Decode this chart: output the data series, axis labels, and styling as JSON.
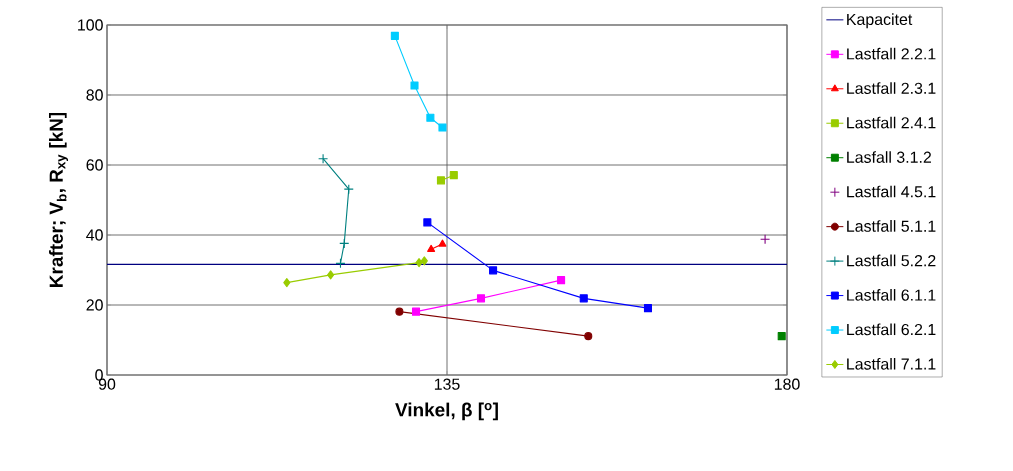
{
  "chart_data": {
    "type": "line",
    "xlabel": "Vinkel, β [$^{o}$]",
    "ylabel": "Krafter; V$_{b}$, R$_{xy}$ [kN]",
    "xlim": [
      90,
      180
    ],
    "xticks": [
      90,
      135,
      180
    ],
    "ylim": [
      0,
      100
    ],
    "yticks": [
      0,
      20,
      40,
      60,
      80,
      100
    ],
    "grid": true,
    "legend": "right",
    "series": [
      {
        "name": "Kapacitet",
        "color": "#000080",
        "marker": "none",
        "line_style": "solid",
        "x": [
          90,
          180
        ],
        "values": [
          31.6,
          31.6
        ]
      },
      {
        "name": "Lastfall 2.2.1",
        "color": "#ff00ff",
        "marker": "square",
        "line_style": "solid",
        "x": [
          130.9,
          139.5,
          150.1
        ],
        "values": [
          18.1,
          21.9,
          27.1
        ]
      },
      {
        "name": "Lastfall 2.3.1",
        "color": "#ff0000",
        "marker": "triangle",
        "line_style": "solid",
        "x": [
          132.9,
          134.4
        ],
        "values": [
          35.9,
          37.4
        ]
      },
      {
        "name": "Lastfall 2.4.1",
        "color": "#99cc00",
        "marker": "square",
        "line_style": "solid",
        "x": [
          134.2,
          135.9
        ],
        "values": [
          55.6,
          57.1
        ]
      },
      {
        "name": "Lasfall 3.1.2",
        "color": "#008000",
        "marker": "square",
        "line_style": "solid",
        "x": [
          179.3
        ],
        "values": [
          11.1
        ]
      },
      {
        "name": "Lastfall 4.5.1",
        "color": "#800080",
        "marker": "cross",
        "type": "scatter",
        "x": [
          177.1
        ],
        "values": [
          38.8
        ]
      },
      {
        "name": "Lastfall 5.1.1",
        "color": "#800000",
        "marker": "circle",
        "line_style": "solid",
        "x": [
          128.7,
          153.7
        ],
        "values": [
          18.1,
          11.1
        ]
      },
      {
        "name": "Lastfall 5.2.2",
        "color": "#008080",
        "marker": "cross",
        "line_style": "solid",
        "x": [
          118.6,
          122.0,
          121.4,
          120.9
        ],
        "values": [
          61.8,
          53.1,
          37.6,
          31.9
        ]
      },
      {
        "name": "Lastfall 6.1.1",
        "color": "#0000ff",
        "marker": "square",
        "line_style": "solid",
        "x": [
          132.4,
          141.1,
          153.1,
          161.6
        ],
        "values": [
          43.6,
          29.9,
          21.9,
          19.1
        ]
      },
      {
        "name": "Lastfall 6.2.1",
        "color": "#00ccff",
        "marker": "square",
        "line_style": "solid",
        "x": [
          128.1,
          130.7,
          132.8,
          134.4
        ],
        "values": [
          96.9,
          82.7,
          73.5,
          70.7
        ]
      },
      {
        "name": "Lastfall 7.1.1",
        "color": "#99cc00",
        "marker": "diamond",
        "line_style": "solid",
        "x": [
          113.8,
          119.6,
          131.3,
          132.0
        ],
        "values": [
          26.4,
          28.6,
          32.1,
          32.6
        ]
      }
    ]
  }
}
